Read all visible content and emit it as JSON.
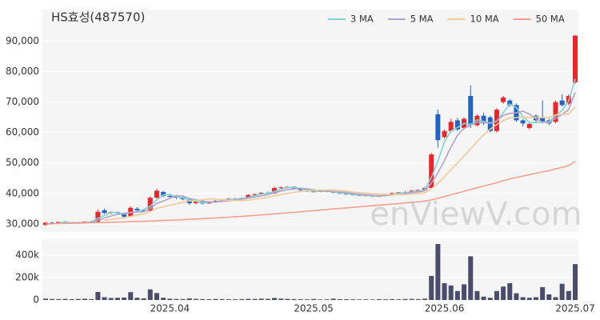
{
  "chart_data": [
    {
      "type": "candlestick",
      "title": "HS효성(487570)",
      "watermark": "enViewV.com",
      "up_color": "#e8262b",
      "down_color": "#1f63c6",
      "open": [
        29700,
        30400,
        30300,
        30700,
        30500,
        30100,
        30500,
        30800,
        30700,
        34500,
        33600,
        33900,
        33500,
        32400,
        35000,
        34500,
        34300,
        38600,
        40500,
        39200,
        38900,
        38700,
        38100,
        36800,
        37300,
        36700,
        37400,
        37600,
        38000,
        38300,
        38100,
        38500,
        39500,
        39800,
        40200,
        40000,
        41800,
        42000,
        42200,
        41500,
        41100,
        40700,
        40500,
        41000,
        40600,
        40300,
        40000,
        39700,
        39500,
        39300,
        39400,
        39000,
        39200,
        39700,
        40100,
        40400,
        40200,
        40900,
        41100,
        41800,
        66000,
        58500,
        60500,
        64000,
        61500,
        72000,
        62400,
        65500,
        65000,
        60500,
        70000,
        70500,
        69000,
        64000,
        61500,
        65500,
        65000,
        64000,
        63500,
        70500,
        69500,
        76500
      ],
      "high": [
        30600,
        30700,
        30800,
        30900,
        30600,
        30600,
        30900,
        31000,
        34800,
        35000,
        34200,
        34100,
        33700,
        35800,
        35500,
        35000,
        39000,
        41500,
        40800,
        39800,
        39300,
        39000,
        38300,
        37600,
        37500,
        37500,
        37800,
        38200,
        38500,
        38600,
        38700,
        39800,
        40000,
        40500,
        40600,
        42200,
        42300,
        42400,
        42300,
        41700,
        41300,
        41000,
        41200,
        41200,
        40800,
        40500,
        40200,
        39900,
        39800,
        39600,
        39500,
        39400,
        39900,
        40300,
        40500,
        40800,
        41200,
        41400,
        42000,
        53300,
        67500,
        61000,
        64500,
        64800,
        65000,
        75500,
        66000,
        66500,
        65500,
        68000,
        72000,
        71000,
        69500,
        64500,
        63200,
        66000,
        70500,
        64500,
        70500,
        72500,
        72500,
        92000
      ],
      "low": [
        29400,
        30100,
        30200,
        30400,
        30000,
        30000,
        30300,
        30500,
        30500,
        33300,
        33200,
        33300,
        32000,
        32200,
        34300,
        34000,
        34000,
        38300,
        38800,
        38500,
        38200,
        37800,
        36300,
        36500,
        36400,
        36600,
        37100,
        37400,
        37800,
        37900,
        38000,
        38300,
        39100,
        39500,
        39800,
        39800,
        41400,
        41700,
        41300,
        40900,
        40500,
        40300,
        40400,
        40400,
        40100,
        39800,
        39500,
        39300,
        39100,
        39000,
        38800,
        38800,
        39100,
        39600,
        39900,
        40000,
        40100,
        40600,
        40900,
        41500,
        55000,
        58000,
        60000,
        60500,
        61000,
        61500,
        62000,
        62500,
        60000,
        60000,
        69500,
        68500,
        63500,
        62000,
        61000,
        63500,
        63000,
        62500,
        63000,
        68500,
        69000,
        76000
      ],
      "close": [
        30400,
        30300,
        30700,
        30500,
        30100,
        30500,
        30800,
        30700,
        34000,
        33600,
        33900,
        33500,
        32400,
        35300,
        34500,
        34300,
        38600,
        40900,
        39200,
        38900,
        38700,
        38100,
        36800,
        37300,
        36700,
        37400,
        37600,
        38000,
        38300,
        38100,
        38500,
        39500,
        39800,
        40200,
        40000,
        41800,
        42000,
        42200,
        41500,
        41100,
        40700,
        40500,
        41000,
        40600,
        40300,
        40000,
        39700,
        39500,
        39300,
        39400,
        39000,
        39200,
        39700,
        40100,
        40400,
        40200,
        40900,
        41100,
        41800,
        52800,
        57500,
        60500,
        63500,
        61000,
        64500,
        62400,
        65500,
        63000,
        60500,
        67500,
        71500,
        69000,
        64000,
        63000,
        62800,
        64000,
        63500,
        63000,
        70000,
        69000,
        72000,
        91800
      ],
      "series": [
        {
          "name": "3 MA",
          "color": "#7fd3d0",
          "values": [
            null,
            null,
            30470,
            30500,
            30430,
            30370,
            30470,
            30670,
            31830,
            32770,
            33830,
            33670,
            33270,
            33730,
            34070,
            34700,
            35800,
            37930,
            39570,
            39670,
            38930,
            38570,
            37870,
            37400,
            36930,
            37130,
            37230,
            37670,
            37970,
            38130,
            38300,
            38700,
            39270,
            39830,
            40000,
            40670,
            41270,
            42000,
            41900,
            41600,
            41100,
            40770,
            40730,
            40700,
            40630,
            40300,
            40000,
            39730,
            39500,
            39400,
            39230,
            39200,
            39300,
            39670,
            40070,
            40230,
            40500,
            40730,
            41270,
            45230,
            50700,
            56930,
            60500,
            61670,
            63000,
            62630,
            64130,
            63630,
            63000,
            63670,
            66500,
            69330,
            68170,
            65330,
            63270,
            63270,
            63430,
            63500,
            65500,
            67330,
            70330,
            77600
          ]
        },
        {
          "name": "5 MA",
          "color": "#b3a2c8",
          "values": [
            null,
            null,
            null,
            null,
            30400,
            30420,
            30520,
            30520,
            31220,
            31920,
            32600,
            33140,
            33480,
            33740,
            33920,
            34000,
            35020,
            36720,
            37500,
            38380,
            39260,
            39160,
            38340,
            37960,
            37520,
            37260,
            37160,
            37400,
            37600,
            37880,
            38100,
            38480,
            38840,
            39220,
            39600,
            40260,
            40760,
            41240,
            41500,
            41720,
            41500,
            41200,
            40960,
            40780,
            40620,
            40480,
            40320,
            40020,
            39760,
            39580,
            39380,
            39280,
            39320,
            39480,
            39680,
            39920,
            40260,
            40540,
            40880,
            43360,
            46820,
            50740,
            55220,
            59060,
            61400,
            62380,
            63380,
            63280,
            63180,
            63780,
            65600,
            66300,
            66500,
            67000,
            66060,
            64560,
            63460,
            63260,
            64660,
            65900,
            67500,
            73160
          ]
        },
        {
          "name": "10 MA",
          "color": "#f0c99a",
          "values": [
            null,
            null,
            null,
            null,
            null,
            null,
            null,
            null,
            null,
            31160,
            31510,
            31830,
            32000,
            32480,
            32920,
            33300,
            34080,
            35100,
            35620,
            36150,
            36630,
            37090,
            37530,
            37730,
            37950,
            38260,
            38160,
            37870,
            37780,
            37700,
            37680,
            37820,
            38120,
            38410,
            38740,
            39180,
            39620,
            40040,
            40360,
            40660,
            40880,
            40980,
            41100,
            41140,
            41170,
            40990,
            40760,
            40490,
            40270,
            40100,
            39930,
            39800,
            39670,
            39620,
            39630,
            39650,
            39770,
            39930,
            40180,
            41520,
            43370,
            45500,
            47880,
            49970,
            52380,
            54600,
            57060,
            59250,
            61120,
            62590,
            63990,
            64840,
            64890,
            65090,
            64920,
            65080,
            64880,
            64880,
            65830,
            65980,
            66030,
            68310
          ]
        },
        {
          "name": "50 MA",
          "color": "#f4a090",
          "values": [
            30000,
            30050,
            30100,
            30150,
            30200,
            30250,
            30300,
            30360,
            30420,
            30480,
            30540,
            30600,
            30670,
            30740,
            30810,
            30880,
            30960,
            31040,
            31120,
            31210,
            31300,
            31400,
            31500,
            31610,
            31720,
            31840,
            31960,
            32090,
            32220,
            32360,
            32500,
            32650,
            32800,
            32960,
            33120,
            33290,
            33460,
            33640,
            33820,
            34000,
            34180,
            34360,
            34540,
            34720,
            34900,
            35080,
            35260,
            35440,
            35620,
            35800,
            35980,
            36160,
            36340,
            36520,
            36700,
            36880,
            37060,
            37260,
            37480,
            37900,
            38420,
            38980,
            39580,
            40120,
            40720,
            41300,
            41900,
            42460,
            42960,
            43540,
            44180,
            44760,
            45240,
            45700,
            46160,
            46620,
            47060,
            47500,
            48060,
            48580,
            49160,
            50520
          ]
        }
      ],
      "ylim": [
        27350,
        100350
      ],
      "yticks": [
        {
          "value": 30000,
          "label": "30,000"
        },
        {
          "value": 40000,
          "label": "40,000"
        },
        {
          "value": 50000,
          "label": "50,000"
        },
        {
          "value": 60000,
          "label": "60,000"
        },
        {
          "value": 70000,
          "label": "70,000"
        },
        {
          "value": 80000,
          "label": "80,000"
        },
        {
          "value": 90000,
          "label": "90,000"
        }
      ],
      "grid": true,
      "legend": "top-right"
    },
    {
      "type": "bar",
      "color": "#4b4b6b",
      "categories": [
        null,
        null,
        null,
        null,
        null,
        null,
        null,
        null,
        null,
        null,
        null,
        null,
        null,
        null,
        null,
        null,
        null,
        null,
        null,
        "2025.04",
        null,
        null,
        null,
        null,
        null,
        null,
        null,
        null,
        null,
        null,
        null,
        null,
        null,
        null,
        null,
        null,
        null,
        null,
        null,
        null,
        null,
        "2025.05",
        null,
        null,
        null,
        null,
        null,
        null,
        null,
        null,
        null,
        null,
        null,
        null,
        null,
        null,
        null,
        null,
        null,
        null,
        null,
        "2025.06",
        null,
        null,
        null,
        null,
        null,
        null,
        null,
        null,
        null,
        null,
        null,
        null,
        null,
        null,
        null,
        null,
        null,
        null,
        null,
        "2025.07"
      ],
      "values": [
        12000,
        9000,
        8000,
        10000,
        7000,
        9000,
        11000,
        8000,
        72000,
        25000,
        18000,
        20000,
        22000,
        70000,
        20000,
        15000,
        95000,
        62000,
        20000,
        12000,
        9000,
        8000,
        14000,
        10000,
        8000,
        7000,
        9000,
        8000,
        7000,
        6000,
        8000,
        10000,
        9000,
        12000,
        10000,
        18000,
        12000,
        10000,
        8000,
        7000,
        6000,
        9000,
        5000,
        6000,
        12000,
        8000,
        7000,
        6000,
        5000,
        6000,
        5000,
        7000,
        6000,
        8000,
        6000,
        9000,
        10000,
        8000,
        12000,
        215000,
        500000,
        150000,
        130000,
        80000,
        140000,
        390000,
        80000,
        30000,
        20000,
        80000,
        120000,
        150000,
        60000,
        25000,
        20000,
        25000,
        115000,
        50000,
        25000,
        145000,
        80000,
        320000
      ],
      "ylim": [
        0,
        550000
      ],
      "yticks": [
        0,
        {
          "value": 200000,
          "label": "200k"
        },
        {
          "value": 400000,
          "label": "400k"
        }
      ],
      "grid": true
    }
  ]
}
